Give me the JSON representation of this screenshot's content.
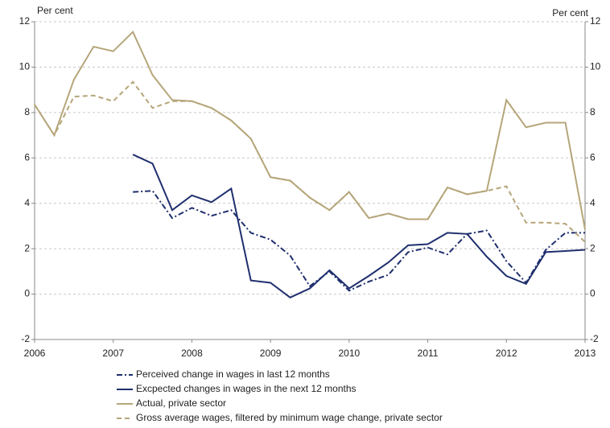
{
  "chart_data": {
    "type": "line",
    "ylabel": "Per cent",
    "y2label": "Per cent",
    "x": [
      2006,
      2006.25,
      2006.5,
      2006.75,
      2007,
      2007.25,
      2007.5,
      2007.75,
      2008,
      2008.25,
      2008.5,
      2008.75,
      2009,
      2009.25,
      2009.5,
      2009.75,
      2010,
      2010.25,
      2010.5,
      2010.75,
      2011,
      2011.25,
      2011.5,
      2011.75,
      2012,
      2012.25,
      2012.5,
      2012.75,
      2013
    ],
    "series": [
      {
        "name": "Perceived change in wages in last 12 months",
        "color": "#1f2f6e",
        "style": "dashdot",
        "values": [
          null,
          null,
          null,
          null,
          null,
          4.5,
          4.55,
          3.35,
          3.8,
          3.45,
          3.7,
          2.7,
          2.4,
          1.7,
          0.35,
          1.0,
          0.15,
          0.55,
          0.85,
          1.85,
          2.05,
          1.75,
          2.65,
          2.8,
          1.45,
          0.5,
          1.95,
          2.7,
          2.7
        ]
      },
      {
        "name": "Excpected changes in wages in the next 12 months",
        "color": "#1f2f6e",
        "style": "solid",
        "values": [
          null,
          null,
          null,
          null,
          null,
          6.15,
          5.75,
          3.7,
          4.35,
          4.05,
          4.65,
          0.6,
          0.5,
          -0.15,
          0.25,
          1.05,
          0.25,
          0.8,
          1.4,
          2.15,
          2.2,
          2.7,
          2.65,
          1.65,
          0.8,
          0.45,
          1.85,
          1.9,
          1.95
        ]
      },
      {
        "name": "Actual, private sector",
        "color": "#b5a67a",
        "style": "solid",
        "values": [
          8.35,
          7.0,
          9.45,
          10.9,
          10.7,
          11.55,
          9.65,
          8.55,
          8.5,
          8.2,
          7.65,
          6.85,
          5.15,
          5.0,
          4.25,
          3.7,
          4.5,
          3.35,
          3.55,
          3.3,
          3.3,
          4.7,
          4.4,
          4.55,
          8.55,
          7.35,
          7.55,
          7.55,
          2.85
        ]
      },
      {
        "name": "Gross average wages, filtered by minimum wage change, private sector",
        "color": "#b5a67a",
        "style": "dashed",
        "values": [
          8.35,
          7.0,
          8.7,
          8.75,
          8.5,
          9.35,
          8.2,
          8.5,
          8.5,
          8.2,
          7.65,
          6.85,
          5.15,
          5.0,
          4.25,
          3.7,
          4.5,
          3.35,
          3.55,
          3.3,
          3.3,
          4.7,
          4.4,
          4.55,
          4.75,
          3.15,
          3.15,
          3.1,
          2.3
        ]
      }
    ],
    "xlim": [
      2006,
      2013
    ],
    "xticks": [
      2006,
      2007,
      2008,
      2009,
      2010,
      2011,
      2012,
      2013
    ],
    "ylim": [
      -2,
      12
    ],
    "yticks": [
      -2,
      0,
      2,
      4,
      6,
      8,
      10,
      12
    ],
    "y2lim": [
      -2,
      12
    ],
    "y2ticks": [
      -2,
      0,
      2,
      4,
      6,
      8,
      10,
      12
    ],
    "grid": true
  }
}
